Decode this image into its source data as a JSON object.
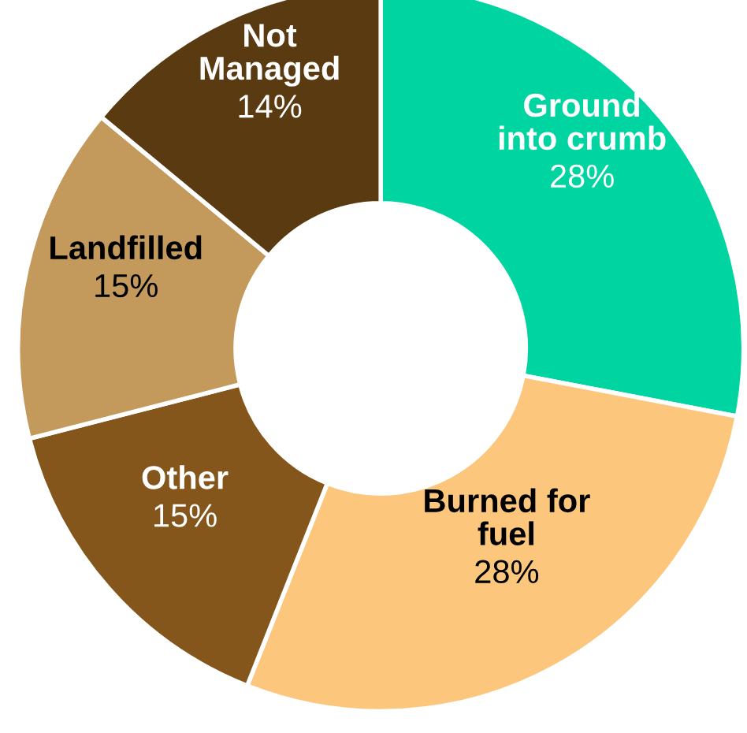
{
  "chart_data": {
    "type": "donut",
    "categories": [
      "Ground\ninto crumb",
      "Burned for\nfuel",
      "Other",
      "Landfilled",
      "Not\nManaged"
    ],
    "values": [
      28,
      28,
      15,
      15,
      14
    ],
    "value_labels": [
      "28%",
      "28%",
      "15%",
      "15%",
      "14%"
    ],
    "colors": [
      "#00d4a0",
      "#fcc77c",
      "#85561b",
      "#c39a5c",
      "#5a3a10"
    ],
    "legend": false
  }
}
